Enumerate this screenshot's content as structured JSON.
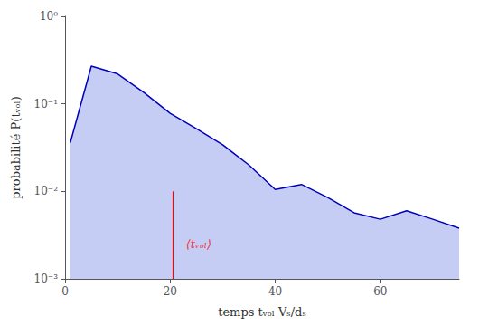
{
  "chart_data": {
    "type": "line",
    "x": [
      1,
      5,
      10,
      15,
      20,
      25,
      30,
      35,
      40,
      45,
      50,
      55,
      60,
      65,
      70,
      75
    ],
    "values": [
      0.036,
      0.27,
      0.22,
      0.135,
      0.078,
      0.052,
      0.034,
      0.02,
      0.0105,
      0.012,
      0.0085,
      0.0057,
      0.0048,
      0.006,
      0.0048,
      0.0038
    ],
    "color": "#0000bb",
    "fill_color": "#c5cdf5",
    "log": "y",
    "xlim": [
      0,
      75
    ],
    "ylim": [
      0.001,
      1.0
    ],
    "xticks": [
      0,
      20,
      40,
      60
    ],
    "yticks": [
      {
        "value": 0.001,
        "label": "10⁻³"
      },
      {
        "value": 0.01,
        "label": "10⁻²"
      },
      {
        "value": 0.1,
        "label": "10⁻¹"
      },
      {
        "value": 1,
        "label": "10⁰"
      }
    ],
    "xlabel": "temps tᵥₒₗ Vₛ/dₛ",
    "ylabel": "probabilité P(tᵥₒₗ)",
    "grid": false,
    "vline": {
      "x": 20.5,
      "ymin": 0.001,
      "ymax": 0.01,
      "color": "red"
    },
    "annotations": [
      {
        "text": "⟨tᵥₒₗ⟩",
        "x": 23,
        "y": 0.0025,
        "color": "red"
      }
    ]
  }
}
